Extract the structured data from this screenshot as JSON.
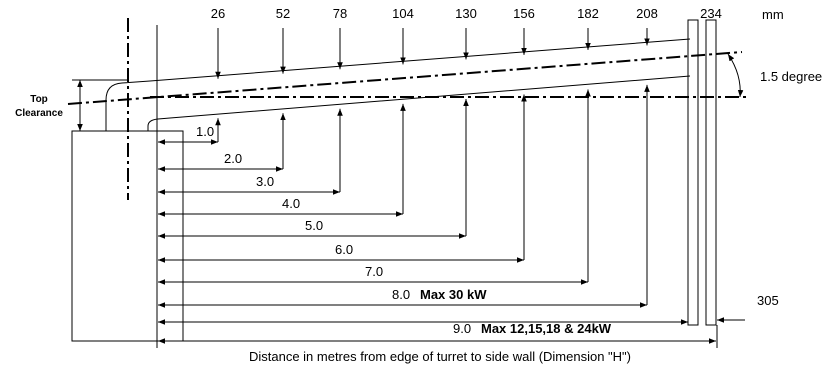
{
  "top_clearance": {
    "line1": "Top",
    "line2": "Clearance"
  },
  "heights": {
    "values": [
      26,
      52,
      78,
      104,
      130,
      156,
      182,
      208,
      234
    ],
    "unit": "mm"
  },
  "angle": "1.5 degree",
  "distances": [
    {
      "label": "1.0"
    },
    {
      "label": "2.0"
    },
    {
      "label": "3.0"
    },
    {
      "label": "4.0"
    },
    {
      "label": "5.0"
    },
    {
      "label": "6.0"
    },
    {
      "label": "7.0"
    },
    {
      "label": "8.0",
      "note": "Max 30 kW"
    },
    {
      "label": "9.0",
      "note": "Max 12,15,18 & 24kW"
    }
  ],
  "wall_offset": "305",
  "caption": "Distance in metres from edge of turret to side wall (Dimension \"H\")"
}
